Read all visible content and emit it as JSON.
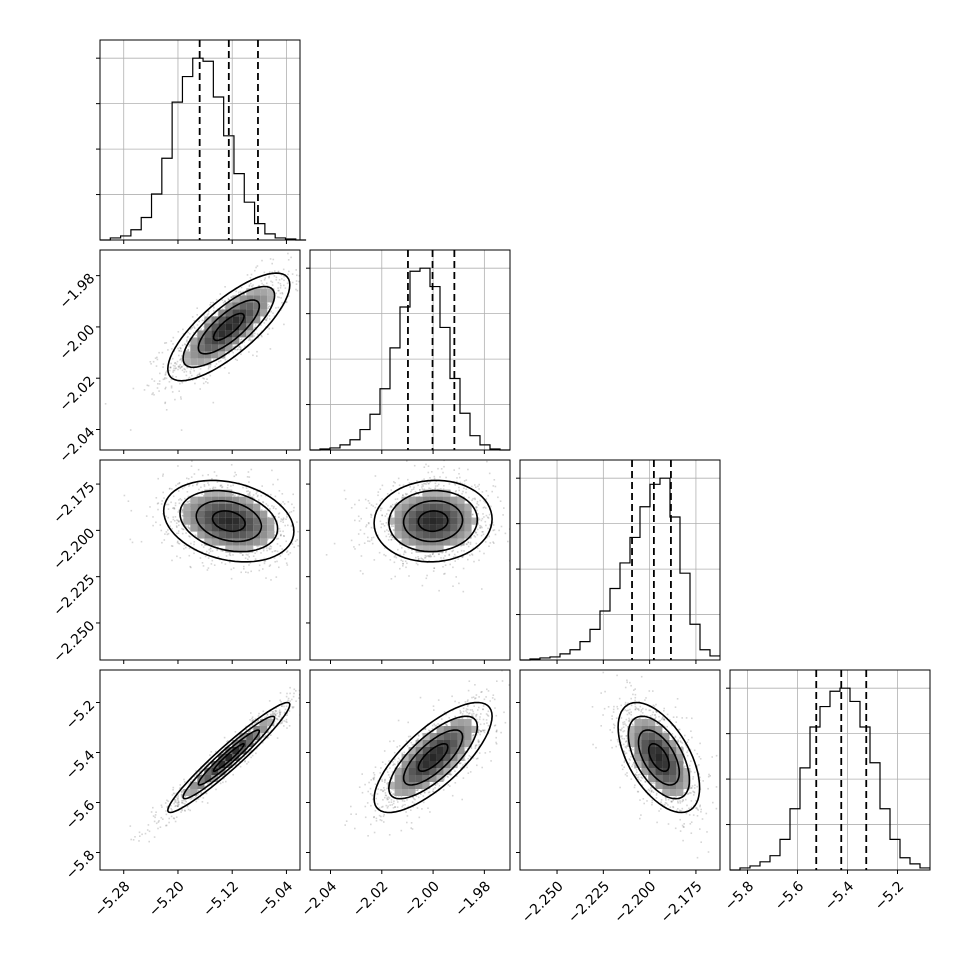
{
  "chart_data": {
    "type": "corner",
    "parameters": [
      {
        "range": [
          -5.315,
          -5.02
        ],
        "ticks": [
          -5.28,
          -5.2,
          -5.12,
          -5.04
        ],
        "tick_labels": [
          "−5.28",
          "−5.20",
          "−5.12",
          "−5.04"
        ]
      },
      {
        "range": [
          -2.048,
          -1.97
        ],
        "ticks": [
          -2.04,
          -2.02,
          -2.0,
          -1.98
        ],
        "tick_labels": [
          "−2.04",
          "−2.02",
          "−2.00",
          "−1.98"
        ]
      },
      {
        "range": [
          -2.27,
          -2.162
        ],
        "ticks": [
          -2.25,
          -2.225,
          -2.2,
          -2.175
        ],
        "tick_labels": [
          "−2.250",
          "−2.225",
          "−2.200",
          "−2.175"
        ]
      },
      {
        "range": [
          -5.87,
          -5.07
        ],
        "ticks": [
          -5.8,
          -5.6,
          -5.4,
          -5.2
        ],
        "tick_labels": [
          "−5.8",
          "−5.6",
          "−5.4",
          "−5.2"
        ]
      }
    ],
    "marginals": [
      {
        "edges": [
          -5.315,
          -5.2998,
          -5.2846,
          -5.2694,
          -5.2542,
          -5.239,
          -5.2238,
          -5.2086,
          -5.1934,
          -5.1782,
          -5.163,
          -5.1478,
          -5.1326,
          -5.1174,
          -5.1022,
          -5.087,
          -5.0718,
          -5.0566,
          -5.0414,
          -5.0262,
          -5.011
        ],
        "counts": [
          0,
          2,
          4,
          10,
          22,
          45,
          80,
          135,
          160,
          178,
          175,
          140,
          102,
          65,
          37,
          16,
          6,
          2,
          1,
          0
        ],
        "quantiles": [
          -5.168,
          -5.125,
          -5.082
        ]
      },
      {
        "edges": [
          -2.048,
          -2.0441,
          -2.0402,
          -2.0363,
          -2.0324,
          -2.0285,
          -2.0246,
          -2.0207,
          -2.0168,
          -2.0129,
          -2.009,
          -2.0051,
          -2.0012,
          -1.9973,
          -1.9934,
          -1.9895,
          -1.9856,
          -1.9817,
          -1.9778,
          -1.9739,
          -1.97
        ],
        "counts": [
          0,
          1,
          2,
          5,
          10,
          20,
          35,
          60,
          100,
          140,
          175,
          178,
          160,
          120,
          70,
          36,
          14,
          5,
          1,
          0
        ],
        "quantiles": [
          -2.0098,
          -2.0002,
          -1.9917
        ]
      },
      {
        "edges": [
          -2.27,
          -2.2646,
          -2.2592,
          -2.2538,
          -2.2484,
          -2.243,
          -2.2376,
          -2.2322,
          -2.2268,
          -2.2214,
          -2.216,
          -2.2106,
          -2.2052,
          -2.1998,
          -2.1944,
          -2.189,
          -2.1836,
          -2.1782,
          -2.1728,
          -2.1674,
          -2.162
        ],
        "counts": [
          0,
          1,
          2,
          3,
          6,
          10,
          18,
          30,
          48,
          70,
          95,
          120,
          150,
          172,
          178,
          140,
          85,
          35,
          10,
          4
        ],
        "quantiles": [
          -2.2095,
          -2.1977,
          -2.1885
        ]
      },
      {
        "edges": [
          -5.87,
          -5.83,
          -5.79,
          -5.75,
          -5.71,
          -5.67,
          -5.63,
          -5.59,
          -5.55,
          -5.51,
          -5.47,
          -5.43,
          -5.39,
          -5.35,
          -5.31,
          -5.27,
          -5.23,
          -5.19,
          -5.15,
          -5.11,
          -5.07
        ],
        "counts": [
          0,
          2,
          4,
          8,
          14,
          30,
          60,
          100,
          140,
          160,
          175,
          178,
          165,
          140,
          105,
          60,
          30,
          12,
          6,
          2
        ],
        "quantiles": [
          -5.525,
          -5.425,
          -5.325
        ]
      }
    ],
    "pairs": [
      {
        "x": 0,
        "y": 1,
        "mean": [
          -5.125,
          -2.0
        ],
        "sd": [
          0.045,
          0.0105
        ],
        "rho": 0.78
      },
      {
        "x": 0,
        "y": 2,
        "mean": [
          -5.125,
          -2.195
        ],
        "sd": [
          0.048,
          0.011
        ],
        "rho": -0.25
      },
      {
        "x": 1,
        "y": 2,
        "mean": [
          -2.0,
          -2.195
        ],
        "sd": [
          0.0115,
          0.011
        ],
        "rho": 0.05
      },
      {
        "x": 0,
        "y": 3,
        "mean": [
          -5.125,
          -5.42
        ],
        "sd": [
          0.045,
          0.11
        ],
        "rho": 0.96
      },
      {
        "x": 1,
        "y": 3,
        "mean": [
          -2.0,
          -5.42
        ],
        "sd": [
          0.0115,
          0.11
        ],
        "rho": 0.75
      },
      {
        "x": 2,
        "y": 3,
        "mean": [
          -2.195,
          -5.42
        ],
        "sd": [
          0.011,
          0.11
        ],
        "rho": -0.55
      }
    ],
    "contour_levels_sigma": [
      0.5,
      1.0,
      1.5,
      2.0
    ],
    "grid": true,
    "colors": {
      "line": "#000000",
      "grid": "#b0b0b0",
      "points": "#6a6a6a"
    }
  }
}
